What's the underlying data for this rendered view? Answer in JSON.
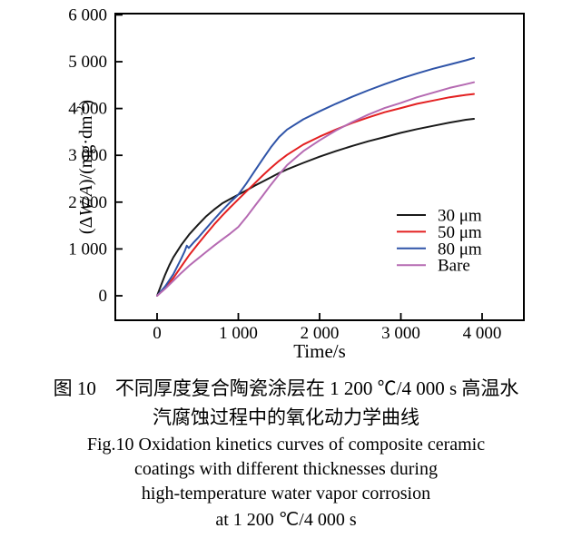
{
  "chart_data": {
    "type": "line",
    "title": "",
    "xlabel": "Time/s",
    "ylabel": "(ΔW/A)/(mg·dm⁻²)",
    "ylabel_parts": [
      {
        "t": "(Δ"
      },
      {
        "t": "W",
        "italic": true
      },
      {
        "t": "/"
      },
      {
        "t": "A",
        "italic": true
      },
      {
        "t": ")/(mg·dm"
      },
      {
        "t": "-2",
        "sup": true
      },
      {
        "t": ")"
      }
    ],
    "xlim": [
      -520,
      4510
    ],
    "ylim": [
      -520,
      6000
    ],
    "grid": false,
    "x_tick_values": [
      0,
      1000,
      2000,
      3000,
      4000
    ],
    "x_tick_labels": [
      "0",
      "1 000",
      "2 000",
      "3 000",
      "4 000"
    ],
    "y_tick_values": [
      0,
      1000,
      2000,
      3000,
      4000,
      5000,
      6000
    ],
    "y_tick_labels": [
      "0",
      "1 000",
      "2 000",
      "3 000",
      "4 000",
      "5 000",
      "6 000"
    ],
    "legend_position": "inside-right-middle",
    "series": [
      {
        "name": "30 μm",
        "color": "#1a1a1a",
        "points": [
          [
            0,
            0
          ],
          [
            50,
            230
          ],
          [
            100,
            450
          ],
          [
            150,
            650
          ],
          [
            200,
            820
          ],
          [
            300,
            1090
          ],
          [
            400,
            1320
          ],
          [
            500,
            1510
          ],
          [
            600,
            1690
          ],
          [
            700,
            1840
          ],
          [
            800,
            1970
          ],
          [
            900,
            2070
          ],
          [
            1000,
            2160
          ],
          [
            1100,
            2250
          ],
          [
            1200,
            2350
          ],
          [
            1300,
            2440
          ],
          [
            1400,
            2530
          ],
          [
            1500,
            2620
          ],
          [
            1600,
            2700
          ],
          [
            1800,
            2840
          ],
          [
            2000,
            2970
          ],
          [
            2200,
            3090
          ],
          [
            2400,
            3200
          ],
          [
            2600,
            3300
          ],
          [
            2800,
            3390
          ],
          [
            3000,
            3480
          ],
          [
            3200,
            3560
          ],
          [
            3400,
            3630
          ],
          [
            3600,
            3700
          ],
          [
            3800,
            3760
          ],
          [
            3900,
            3780
          ]
        ]
      },
      {
        "name": "50 μm",
        "color": "#e32021",
        "points": [
          [
            0,
            0
          ],
          [
            100,
            160
          ],
          [
            200,
            380
          ],
          [
            300,
            630
          ],
          [
            400,
            880
          ],
          [
            500,
            1100
          ],
          [
            600,
            1310
          ],
          [
            700,
            1520
          ],
          [
            800,
            1710
          ],
          [
            900,
            1890
          ],
          [
            1000,
            2060
          ],
          [
            1100,
            2230
          ],
          [
            1200,
            2400
          ],
          [
            1300,
            2570
          ],
          [
            1400,
            2730
          ],
          [
            1500,
            2880
          ],
          [
            1600,
            3010
          ],
          [
            1800,
            3230
          ],
          [
            2000,
            3400
          ],
          [
            2200,
            3550
          ],
          [
            2400,
            3690
          ],
          [
            2600,
            3810
          ],
          [
            2800,
            3920
          ],
          [
            3000,
            4010
          ],
          [
            3200,
            4100
          ],
          [
            3400,
            4170
          ],
          [
            3600,
            4240
          ],
          [
            3800,
            4290
          ],
          [
            3900,
            4310
          ]
        ]
      },
      {
        "name": "80 μm",
        "color": "#2f54a8",
        "points": [
          [
            0,
            0
          ],
          [
            100,
            200
          ],
          [
            200,
            460
          ],
          [
            300,
            800
          ],
          [
            340,
            950
          ],
          [
            365,
            1070
          ],
          [
            390,
            1020
          ],
          [
            450,
            1140
          ],
          [
            500,
            1230
          ],
          [
            600,
            1430
          ],
          [
            700,
            1630
          ],
          [
            800,
            1820
          ],
          [
            900,
            2000
          ],
          [
            1000,
            2160
          ],
          [
            1100,
            2400
          ],
          [
            1200,
            2660
          ],
          [
            1300,
            2920
          ],
          [
            1400,
            3170
          ],
          [
            1500,
            3390
          ],
          [
            1600,
            3550
          ],
          [
            1800,
            3770
          ],
          [
            2000,
            3940
          ],
          [
            2200,
            4100
          ],
          [
            2400,
            4250
          ],
          [
            2600,
            4390
          ],
          [
            2800,
            4520
          ],
          [
            3000,
            4640
          ],
          [
            3200,
            4750
          ],
          [
            3400,
            4850
          ],
          [
            3600,
            4940
          ],
          [
            3800,
            5030
          ],
          [
            3900,
            5080
          ]
        ]
      },
      {
        "name": "Bare",
        "color": "#b56ab2",
        "points": [
          [
            0,
            0
          ],
          [
            100,
            150
          ],
          [
            200,
            320
          ],
          [
            300,
            490
          ],
          [
            400,
            650
          ],
          [
            500,
            790
          ],
          [
            600,
            930
          ],
          [
            700,
            1070
          ],
          [
            800,
            1200
          ],
          [
            900,
            1330
          ],
          [
            1000,
            1470
          ],
          [
            1100,
            1680
          ],
          [
            1200,
            1910
          ],
          [
            1300,
            2140
          ],
          [
            1400,
            2370
          ],
          [
            1500,
            2590
          ],
          [
            1600,
            2790
          ],
          [
            1800,
            3090
          ],
          [
            2000,
            3320
          ],
          [
            2200,
            3530
          ],
          [
            2400,
            3710
          ],
          [
            2600,
            3870
          ],
          [
            2800,
            4010
          ],
          [
            3000,
            4120
          ],
          [
            3200,
            4240
          ],
          [
            3400,
            4340
          ],
          [
            3600,
            4440
          ],
          [
            3800,
            4520
          ],
          [
            3900,
            4560
          ]
        ]
      }
    ]
  },
  "captions": {
    "zh_line1": "图 10　不同厚度复合陶瓷涂层在 1 200 ℃/4 000 s 高温水",
    "zh_line2": "汽腐蚀过程中的氧化动力学曲线",
    "en_line1": "Fig.10 Oxidation kinetics curves of composite ceramic",
    "en_line2": "coatings with different thicknesses during",
    "en_line3": "high-temperature water vapor corrosion",
    "en_line4": "at 1 200  ℃/4 000 s"
  }
}
